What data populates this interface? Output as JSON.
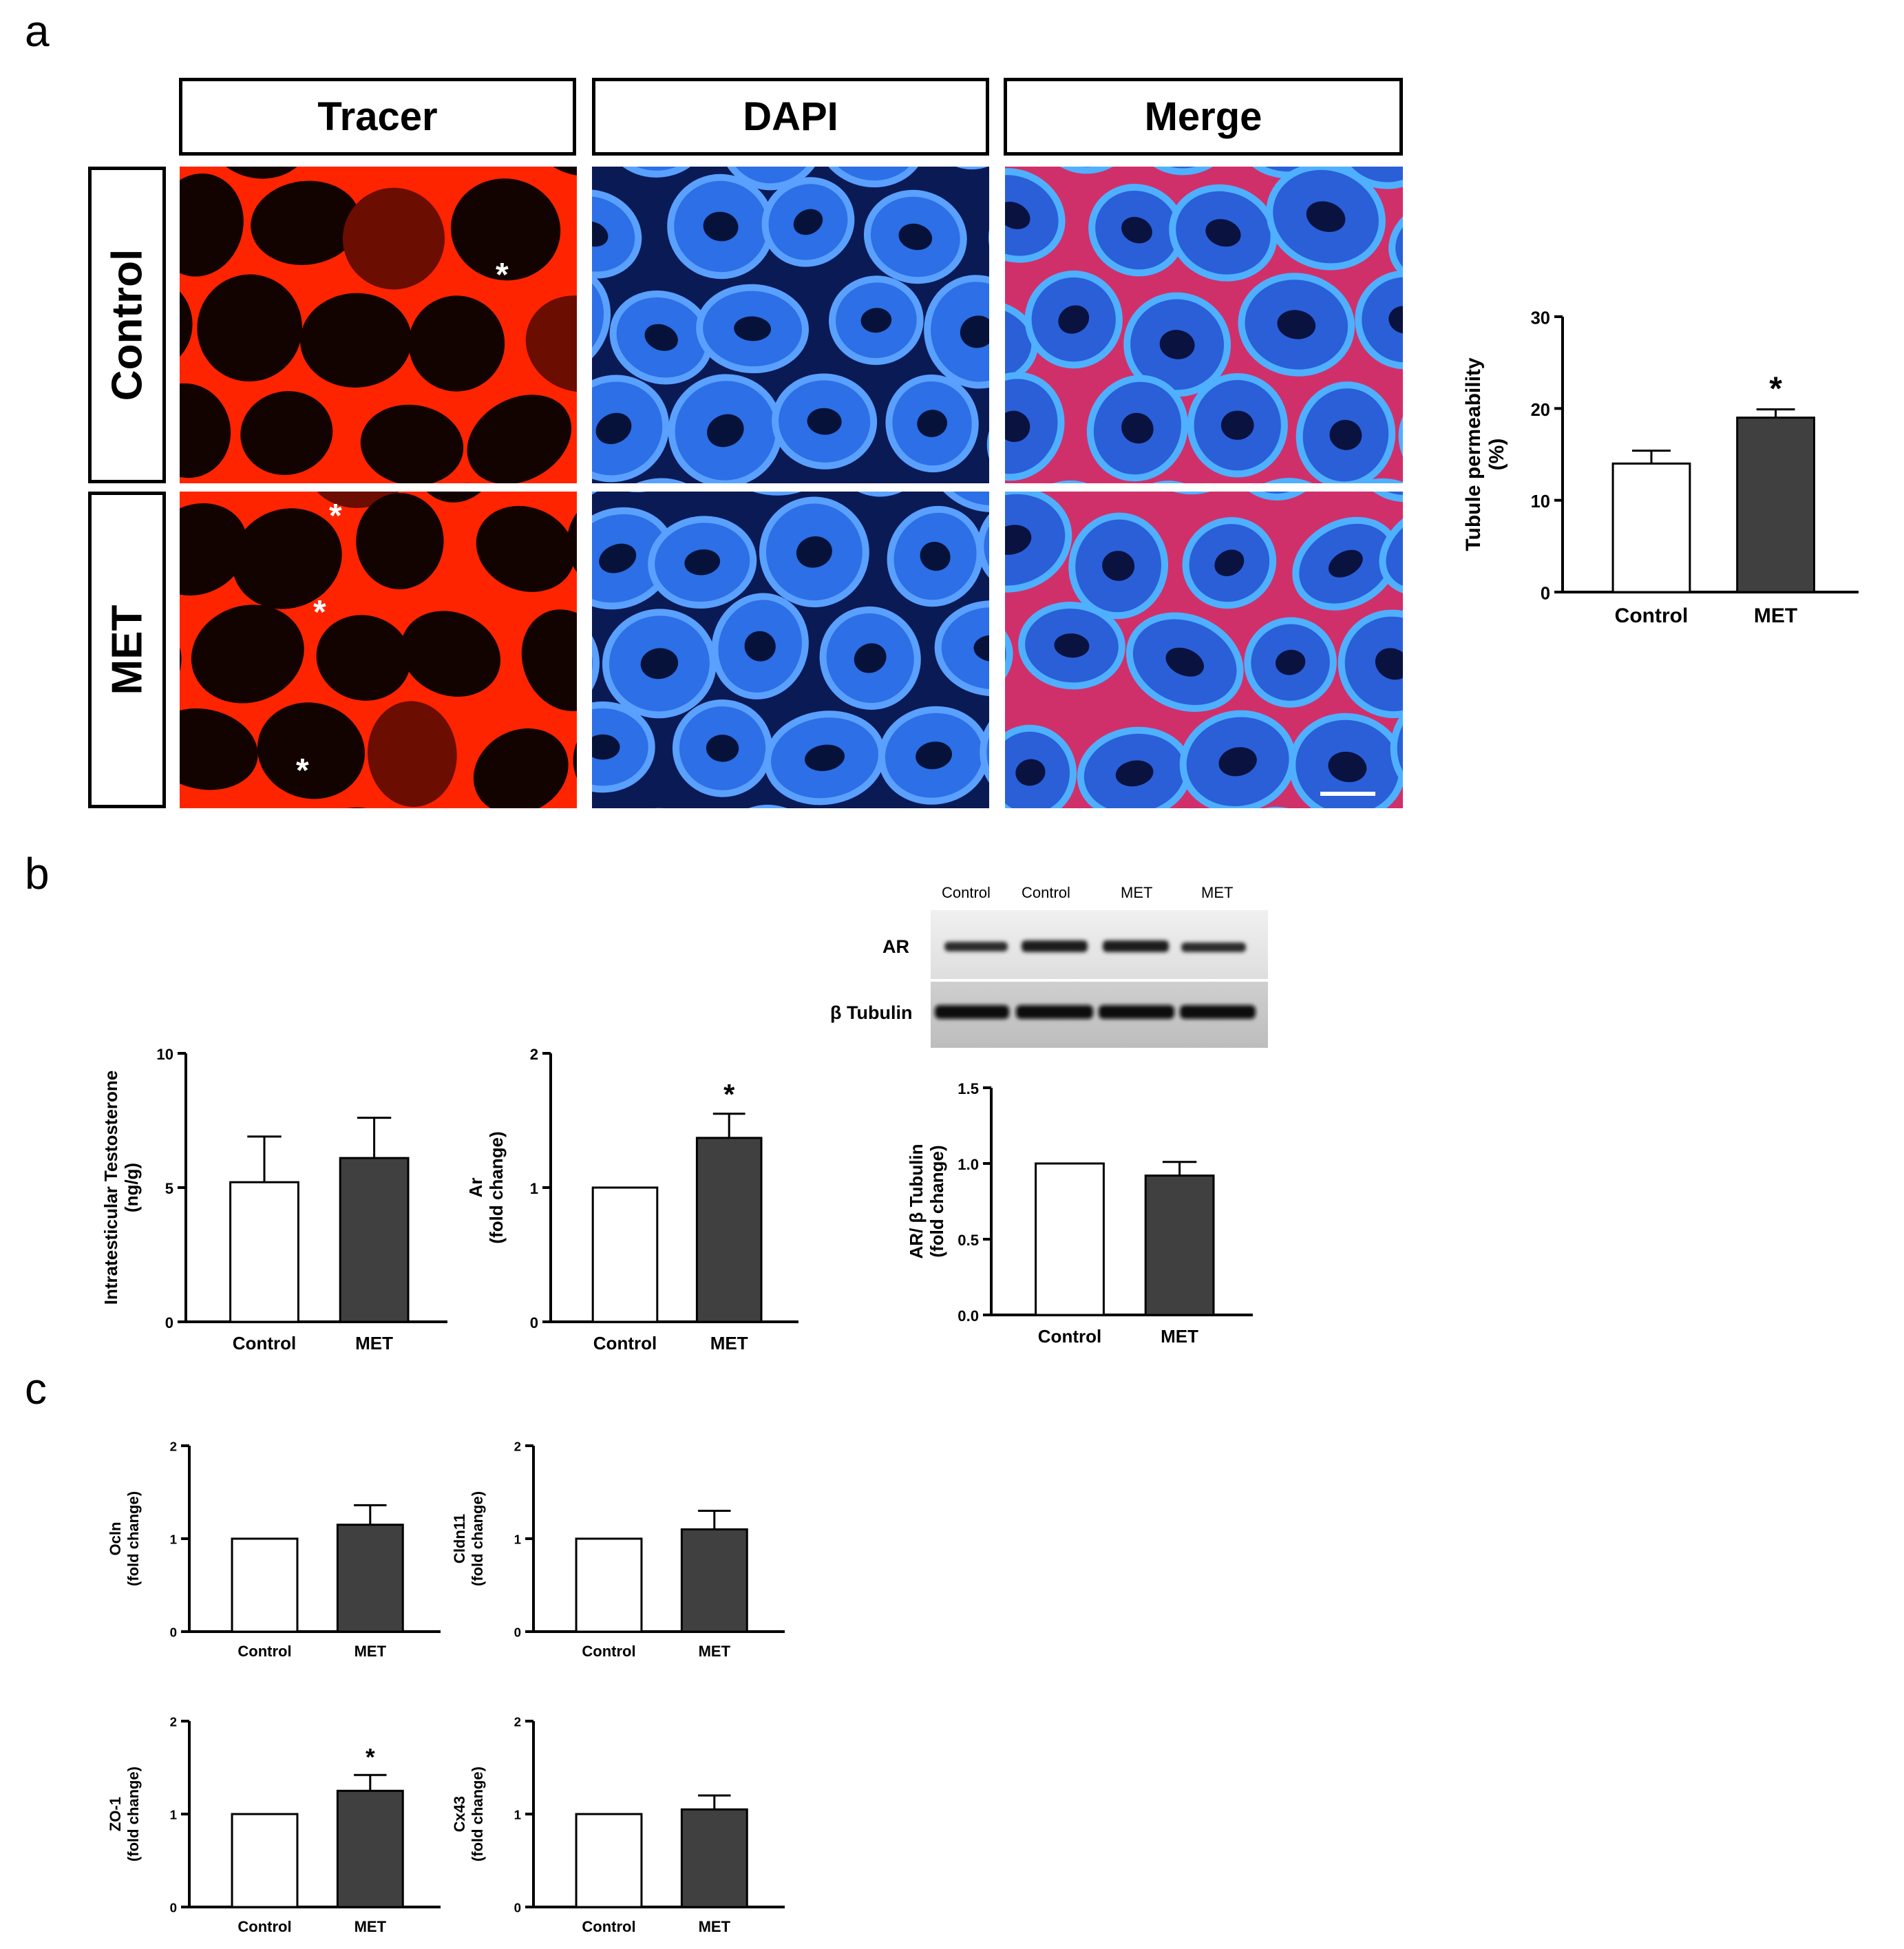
{
  "panel_labels": {
    "a": "a",
    "b": "b",
    "c": "c"
  },
  "micrograph": {
    "columns": [
      "Tracer",
      "DAPI",
      "Merge"
    ],
    "rows": [
      "Control",
      "MET"
    ],
    "marker": "*"
  },
  "blot": {
    "lanes": [
      "Control",
      "Control",
      "MET",
      "MET"
    ],
    "bands": [
      "AR",
      "β Tubulin"
    ]
  },
  "chart_data": [
    {
      "id": "permeability",
      "type": "bar",
      "categories": [
        "Control",
        "MET"
      ],
      "values": [
        14,
        19
      ],
      "errors": [
        1.4,
        0.9
      ],
      "ylabel": "Tubule permeability\n(%)",
      "ylim": [
        0,
        30
      ],
      "yticks": [
        "0",
        "10",
        "20",
        "30"
      ],
      "significance": [
        "",
        "*"
      ]
    },
    {
      "id": "testosterone",
      "type": "bar",
      "categories": [
        "Control",
        "MET"
      ],
      "values": [
        5.2,
        6.1
      ],
      "errors": [
        1.7,
        1.5
      ],
      "ylabel": "Intratesticular Testosterone\n(ng/g)",
      "ylim": [
        0,
        10
      ],
      "yticks": [
        "0",
        "5",
        "10"
      ],
      "significance": [
        "",
        ""
      ]
    },
    {
      "id": "ar-mrna",
      "type": "bar",
      "categories": [
        "Control",
        "MET"
      ],
      "values": [
        1.0,
        1.37
      ],
      "errors": [
        0,
        0.18
      ],
      "ylabel": "Ar\n(fold change)",
      "ylim": [
        0,
        2
      ],
      "yticks": [
        "0",
        "1",
        "2"
      ],
      "significance": [
        "",
        "*"
      ]
    },
    {
      "id": "ar-protein",
      "type": "bar",
      "categories": [
        "Control",
        "MET"
      ],
      "values": [
        1.0,
        0.92
      ],
      "errors": [
        0,
        0.09
      ],
      "ylabel": "AR/ β Tubulin\n(fold change)",
      "ylim": [
        0,
        1.5
      ],
      "yticks": [
        "0.0",
        "0.5",
        "1.0",
        "1.5"
      ],
      "significance": [
        "",
        ""
      ]
    },
    {
      "id": "ocln",
      "type": "bar",
      "categories": [
        "Control",
        "MET"
      ],
      "values": [
        1.0,
        1.15
      ],
      "errors": [
        0,
        0.21
      ],
      "ylabel": "Ocln\n(fold change)",
      "ylim": [
        0,
        2
      ],
      "yticks": [
        "0",
        "1",
        "2"
      ],
      "significance": [
        "",
        ""
      ]
    },
    {
      "id": "cldn11",
      "type": "bar",
      "categories": [
        "Control",
        "MET"
      ],
      "values": [
        1.0,
        1.1
      ],
      "errors": [
        0,
        0.2
      ],
      "ylabel": "Cldn11\n(fold change)",
      "ylim": [
        0,
        2
      ],
      "yticks": [
        "0",
        "1",
        "2"
      ],
      "significance": [
        "",
        ""
      ]
    },
    {
      "id": "zo1",
      "type": "bar",
      "categories": [
        "Control",
        "MET"
      ],
      "values": [
        1.0,
        1.25
      ],
      "errors": [
        0,
        0.17
      ],
      "ylabel": "ZO-1\n(fold change)",
      "ylim": [
        0,
        2
      ],
      "yticks": [
        "0",
        "1",
        "2"
      ],
      "significance": [
        "",
        "*"
      ]
    },
    {
      "id": "cx43",
      "type": "bar",
      "categories": [
        "Control",
        "MET"
      ],
      "values": [
        1.0,
        1.05
      ],
      "errors": [
        0,
        0.15
      ],
      "ylabel": "Cx43\n(fold change)",
      "ylim": [
        0,
        2
      ],
      "yticks": [
        "0",
        "1",
        "2"
      ],
      "significance": [
        "",
        ""
      ]
    }
  ],
  "colors": {
    "control_bar": "#ffffff",
    "met_bar": "#404040",
    "tracer": "#ff2a00",
    "dapi": "#1f5ccf"
  }
}
